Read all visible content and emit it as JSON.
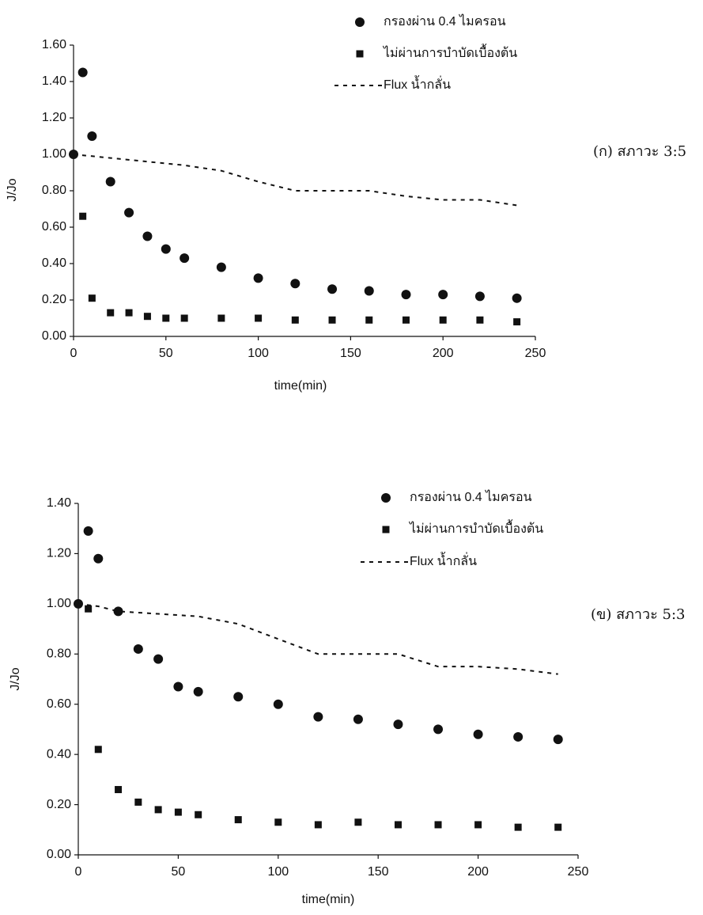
{
  "chart_data": [
    {
      "type": "scatter",
      "annotation": "(ก) สภาวะ 3:5",
      "x_label": "time(min)",
      "y_label": "J/Jo",
      "xlim": [
        0,
        250
      ],
      "xticks": [
        0,
        50,
        100,
        150,
        200,
        250
      ],
      "ylim": [
        0,
        1.6
      ],
      "yticks": [
        {
          "value": 0,
          "label": "0.00"
        },
        {
          "value": 0.2,
          "label": "0.20"
        },
        {
          "value": 0.4,
          "label": "0.40"
        },
        {
          "value": 0.6,
          "label": "0.60"
        },
        {
          "value": 0.8,
          "label": "0.80"
        },
        {
          "value": 1.0,
          "label": "1.00"
        },
        {
          "value": 1.2,
          "label": "1.20"
        },
        {
          "value": 1.4,
          "label": "1.40"
        },
        {
          "value": 1.6,
          "label": "1.60"
        }
      ],
      "series": [
        {
          "name": "กรองผ่าน 0.4 ไมครอน",
          "color": "#111111",
          "marker": "circle",
          "x": [
            0,
            5,
            10,
            20,
            30,
            40,
            50,
            60,
            80,
            100,
            120,
            140,
            160,
            180,
            200,
            220,
            240
          ],
          "values": [
            1.0,
            1.45,
            1.1,
            0.85,
            0.68,
            0.55,
            0.48,
            0.43,
            0.38,
            0.32,
            0.29,
            0.26,
            0.25,
            0.23,
            0.23,
            0.22,
            0.21
          ]
        },
        {
          "name": "ไม่ผ่านการบำบัดเบื้องต้น",
          "color": "#111111",
          "marker": "square",
          "x": [
            5,
            10,
            20,
            30,
            40,
            50,
            60,
            80,
            100,
            120,
            140,
            160,
            180,
            200,
            220,
            240
          ],
          "values": [
            0.66,
            0.21,
            0.13,
            0.13,
            0.11,
            0.1,
            0.1,
            0.1,
            0.1,
            0.09,
            0.09,
            0.09,
            0.09,
            0.09,
            0.09,
            0.08
          ]
        },
        {
          "name": "Flux น้ำกลั่น",
          "color": "#111111",
          "marker": "dashed-line",
          "x": [
            0,
            10,
            20,
            40,
            60,
            80,
            100,
            120,
            140,
            160,
            180,
            200,
            220,
            240
          ],
          "values": [
            1.0,
            0.99,
            0.98,
            0.96,
            0.94,
            0.91,
            0.85,
            0.8,
            0.8,
            0.8,
            0.77,
            0.75,
            0.75,
            0.72
          ]
        }
      ]
    },
    {
      "type": "scatter",
      "annotation": "(ข) สภาวะ 5:3",
      "x_label": "time(min)",
      "y_label": "J/Jo",
      "xlim": [
        0,
        250
      ],
      "xticks": [
        0,
        50,
        100,
        150,
        200,
        250
      ],
      "ylim": [
        0,
        1.4
      ],
      "yticks": [
        {
          "value": 0,
          "label": "0.00"
        },
        {
          "value": 0.2,
          "label": "0.20"
        },
        {
          "value": 0.4,
          "label": "0.40"
        },
        {
          "value": 0.6,
          "label": "0.60"
        },
        {
          "value": 0.8,
          "label": "0.80"
        },
        {
          "value": 1.0,
          "label": "1.00"
        },
        {
          "value": 1.2,
          "label": "1.20"
        },
        {
          "value": 1.4,
          "label": "1.40"
        }
      ],
      "series": [
        {
          "name": "กรองผ่าน 0.4 ไมครอน",
          "color": "#111111",
          "marker": "circle",
          "x": [
            0,
            5,
            10,
            20,
            30,
            40,
            50,
            60,
            80,
            100,
            120,
            140,
            160,
            180,
            200,
            220,
            240
          ],
          "values": [
            1.0,
            1.29,
            1.18,
            0.97,
            0.82,
            0.78,
            0.67,
            0.65,
            0.63,
            0.6,
            0.55,
            0.54,
            0.52,
            0.5,
            0.48,
            0.47,
            0.46
          ]
        },
        {
          "name": "ไม่ผ่านการบำบัดเบื้องต้น",
          "color": "#111111",
          "marker": "square",
          "x": [
            5,
            10,
            20,
            30,
            40,
            50,
            60,
            80,
            100,
            120,
            140,
            160,
            180,
            200,
            220,
            240
          ],
          "values": [
            0.98,
            0.42,
            0.26,
            0.21,
            0.18,
            0.17,
            0.16,
            0.14,
            0.13,
            0.12,
            0.13,
            0.12,
            0.12,
            0.12,
            0.11,
            0.11
          ]
        },
        {
          "name": "Flux น้ำกลั่น",
          "color": "#111111",
          "marker": "dashed-line",
          "x": [
            0,
            10,
            20,
            40,
            60,
            80,
            100,
            120,
            140,
            160,
            180,
            200,
            220,
            240
          ],
          "values": [
            1.0,
            0.99,
            0.97,
            0.96,
            0.95,
            0.92,
            0.86,
            0.8,
            0.8,
            0.8,
            0.75,
            0.75,
            0.74,
            0.72
          ]
        }
      ]
    }
  ]
}
